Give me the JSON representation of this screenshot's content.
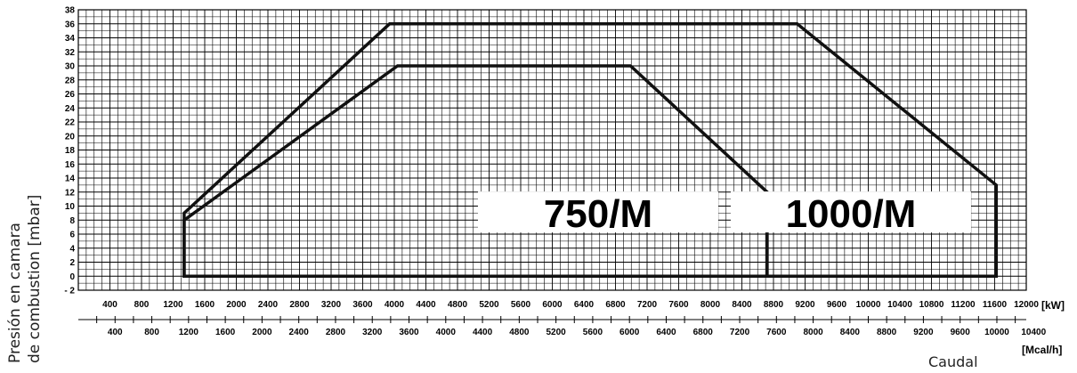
{
  "chart_data": {
    "type": "area",
    "ylabel_line1": "Presión en camara",
    "ylabel_line2": "de combustion [mbar]",
    "xlabel": "Caudal",
    "x_unit": "[kW]",
    "x2_unit": "[Mcal/h]",
    "grid": true,
    "ylim": [
      -2,
      38
    ],
    "y_ticks": [
      -2,
      0,
      2,
      4,
      6,
      8,
      10,
      12,
      14,
      16,
      18,
      20,
      22,
      24,
      26,
      28,
      30,
      32,
      34,
      36,
      38
    ],
    "xlim_kw": [
      0,
      12000
    ],
    "x_ticks_kw": [
      400,
      800,
      1200,
      1600,
      2000,
      2400,
      2800,
      3200,
      3600,
      4000,
      4400,
      4800,
      5200,
      5600,
      6000,
      6400,
      6800,
      7200,
      7600,
      8000,
      8400,
      8800,
      9200,
      9600,
      10000,
      10400,
      10800,
      11200,
      11600,
      12000
    ],
    "x_ticks_mcal": [
      400,
      800,
      1200,
      1600,
      2000,
      2400,
      2800,
      3200,
      3600,
      4000,
      4400,
      4800,
      5200,
      5600,
      6000,
      6400,
      6800,
      7200,
      7600,
      8000,
      8400,
      8800,
      9200,
      9600,
      10000,
      10400
    ],
    "series": [
      {
        "name": "750/M",
        "points": [
          [
            1340,
            0
          ],
          [
            1340,
            8
          ],
          [
            4040,
            30
          ],
          [
            6990,
            30
          ],
          [
            8720,
            12
          ],
          [
            8720,
            0
          ]
        ]
      },
      {
        "name": "1000/M",
        "points": [
          [
            1340,
            0
          ],
          [
            1340,
            9
          ],
          [
            3940,
            36
          ],
          [
            9100,
            36
          ],
          [
            11620,
            13
          ],
          [
            11620,
            0
          ]
        ]
      }
    ]
  }
}
